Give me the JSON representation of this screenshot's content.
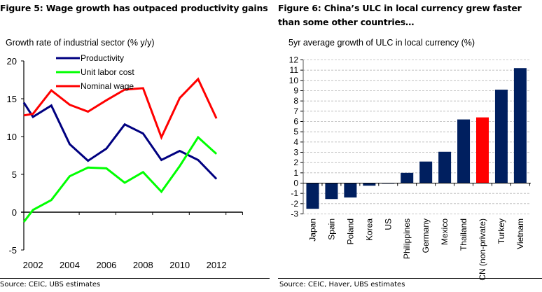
{
  "figures": {
    "fig5": {
      "title": "Figure 5: Wage growth has outpaced productivity gains",
      "source": "Source:  CEIC, UBS estimates"
    },
    "fig6": {
      "title": "Figure 6: China’s ULC in local currency grew faster than some other countries…",
      "source": "Source:  CEIC, Haver, UBS estimates"
    }
  },
  "chart_data": [
    {
      "type": "line",
      "title": "Growth rate of industrial sector (% y/y)",
      "xlabel": "",
      "ylabel": "",
      "x": [
        2001.5,
        2002,
        2003,
        2004,
        2005,
        2006,
        2007,
        2008,
        2009,
        2010,
        2011,
        2012
      ],
      "x_tick_labels": [
        "2002",
        "2004",
        "2006",
        "2008",
        "2010",
        "2012"
      ],
      "x_ticks": [
        2002,
        2004,
        2006,
        2008,
        2010,
        2012
      ],
      "xlim": [
        2001.5,
        2013.5
      ],
      "ylim": [
        -5,
        20
      ],
      "y_ticks": [
        -5,
        0,
        5,
        10,
        15,
        20
      ],
      "grid": false,
      "legend_position": "top-left",
      "series": [
        {
          "name": "Productivity",
          "color": "#000080",
          "values": [
            14.5,
            12.6,
            14.1,
            9.0,
            6.8,
            8.4,
            11.6,
            10.4,
            6.9,
            8.1,
            6.9,
            4.4
          ]
        },
        {
          "name": "Unit labor cost",
          "color": "#00ff00",
          "values": [
            -1.3,
            0.3,
            1.6,
            4.75,
            5.9,
            5.8,
            3.9,
            5.3,
            2.7,
            6.1,
            9.9,
            7.7
          ]
        },
        {
          "name": "Nominal wage",
          "color": "#ff0000",
          "values": [
            12.8,
            13.0,
            16.1,
            14.2,
            13.3,
            14.8,
            16.2,
            16.4,
            9.9,
            15.1,
            17.6,
            12.4
          ]
        }
      ]
    },
    {
      "type": "bar",
      "title": "5yr average growth of ULC in local currency (%)",
      "xlabel": "",
      "ylabel": "",
      "categories": [
        "Japan",
        "Spain",
        "Poland",
        "Korea",
        "US",
        "Philippines",
        "Germany",
        "Mexico",
        "Thailand",
        "CN (non-private)",
        "Turkey",
        "Vietnam"
      ],
      "values": [
        -2.5,
        -1.55,
        -1.4,
        -0.25,
        -0.05,
        1.0,
        2.1,
        3.05,
        6.2,
        6.4,
        9.1,
        11.2
      ],
      "colors": [
        "#001f5f",
        "#001f5f",
        "#001f5f",
        "#001f5f",
        "#001f5f",
        "#001f5f",
        "#001f5f",
        "#001f5f",
        "#001f5f",
        "#ff0000",
        "#001f5f",
        "#001f5f"
      ],
      "ylim": [
        -3,
        12
      ],
      "y_ticks": [
        -3,
        -2,
        -1,
        0,
        1,
        2,
        3,
        4,
        5,
        6,
        7,
        8,
        9,
        10,
        11,
        12
      ],
      "grid": true,
      "legend_position": "none"
    }
  ]
}
